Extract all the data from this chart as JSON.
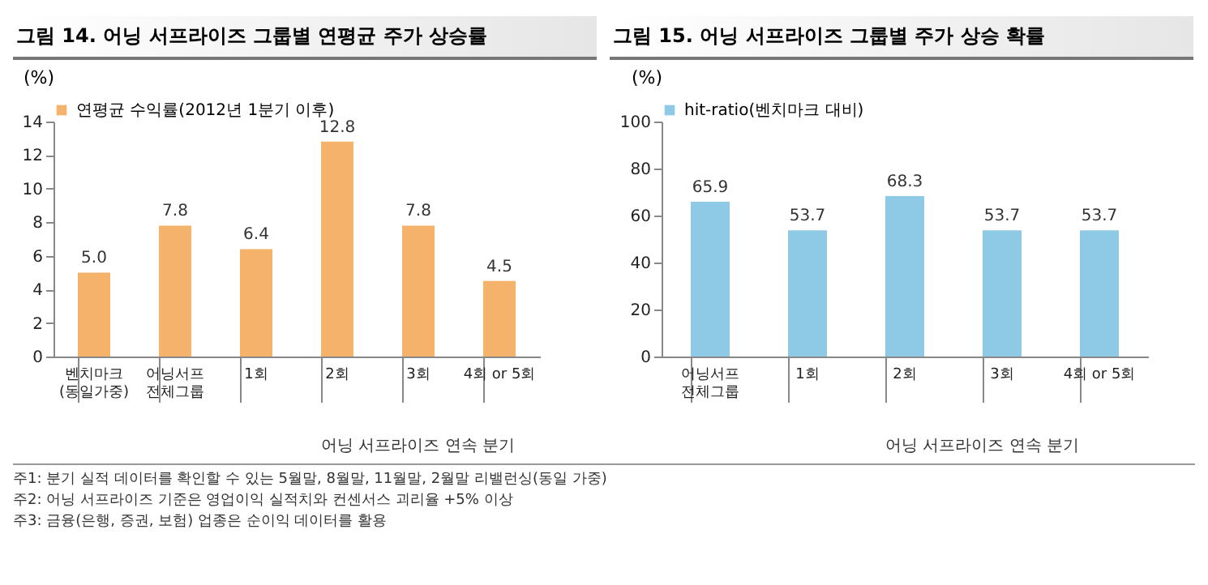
{
  "chart_data": [
    {
      "type": "bar",
      "title": "그림 14. 어닝 서프라이즈 그룹별 연평균 주가 상승률",
      "ylabel": "(%)",
      "categories": [
        "벤치마크\n(동일가중)",
        "어닝서프\n전체그룹",
        "1회",
        "2회",
        "3회",
        "4회 or 5회"
      ],
      "series": [
        {
          "name": "연평균 수익률(2012년 1분기 이후)",
          "color": "#f5b26b",
          "values": [
            5.0,
            7.8,
            6.4,
            12.8,
            7.8,
            4.5
          ]
        }
      ],
      "ylim": [
        0,
        14
      ],
      "yticks": [
        0,
        2,
        4,
        6,
        8,
        10,
        12,
        14
      ],
      "value_labels": [
        "5.0",
        "7.8",
        "6.4",
        "12.8",
        "7.8",
        "4.5"
      ],
      "grid": false,
      "legend": "top",
      "annotations": [
        "어닝 서프라이즈 연속 분기",
        "주1: 분기 실적 데이터를 확인할 수 있는 5월말, 8월말, 11월말, 2월말 리밸런싱(동일 가중)",
        "주2: 어닝 서프라이즈 기준은 영업이익 실적치와 컨센서스 괴리율 +5% 이상",
        "주3: 금융(은행, 증권, 보험) 업종은 순이익 데이터를 활용"
      ]
    },
    {
      "type": "bar",
      "title": "그림 15. 어닝 서프라이즈 그룹별 주가 상승 확률",
      "ylabel": "(%)",
      "categories": [
        "어닝서프\n전체그룹",
        "1회",
        "2회",
        "3회",
        "4회 or 5회"
      ],
      "series": [
        {
          "name": "hit-ratio(벤치마크 대비)",
          "color": "#8ecae6",
          "values": [
            65.9,
            53.7,
            68.3,
            53.7,
            53.7
          ]
        }
      ],
      "ylim": [
        0,
        100
      ],
      "yticks": [
        0,
        20,
        40,
        60,
        80,
        100
      ],
      "value_labels": [
        "65.9",
        "53.7",
        "68.3",
        "53.7",
        "53.7"
      ],
      "grid": false,
      "legend": "top",
      "annotations": [
        "어닝 서프라이즈 연속 분기"
      ]
    }
  ]
}
